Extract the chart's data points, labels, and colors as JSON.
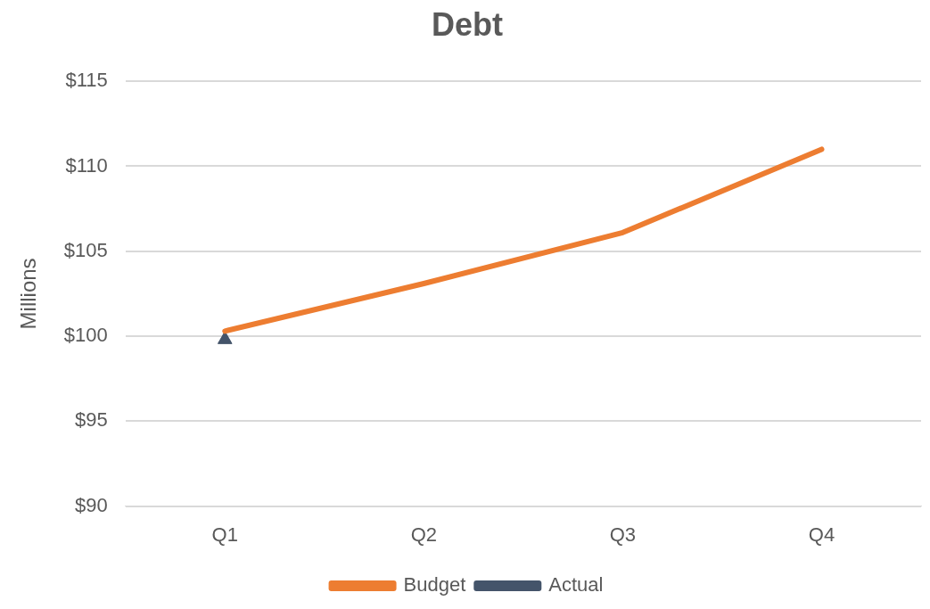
{
  "chart_data": {
    "type": "line",
    "title": "Debt",
    "ylabel": "Millions",
    "categories": [
      "Q1",
      "Q2",
      "Q3",
      "Q4"
    ],
    "series": [
      {
        "name": "Budget",
        "color": "#ed7d31",
        "values": [
          100.3,
          103.1,
          106.1,
          111.0
        ],
        "marker": "none"
      },
      {
        "name": "Actual",
        "color": "#44546a",
        "values": [
          99.8,
          null,
          null,
          null
        ],
        "marker": "triangle"
      }
    ],
    "ylim": [
      90,
      115
    ],
    "yticks": [
      {
        "value": 90,
        "label": "$90"
      },
      {
        "value": 95,
        "label": "$95"
      },
      {
        "value": 100,
        "label": "$100"
      },
      {
        "value": 105,
        "label": "$105"
      },
      {
        "value": 110,
        "label": "$110"
      },
      {
        "value": 115,
        "label": "$115"
      }
    ],
    "grid": "y",
    "legend": "bottom"
  }
}
